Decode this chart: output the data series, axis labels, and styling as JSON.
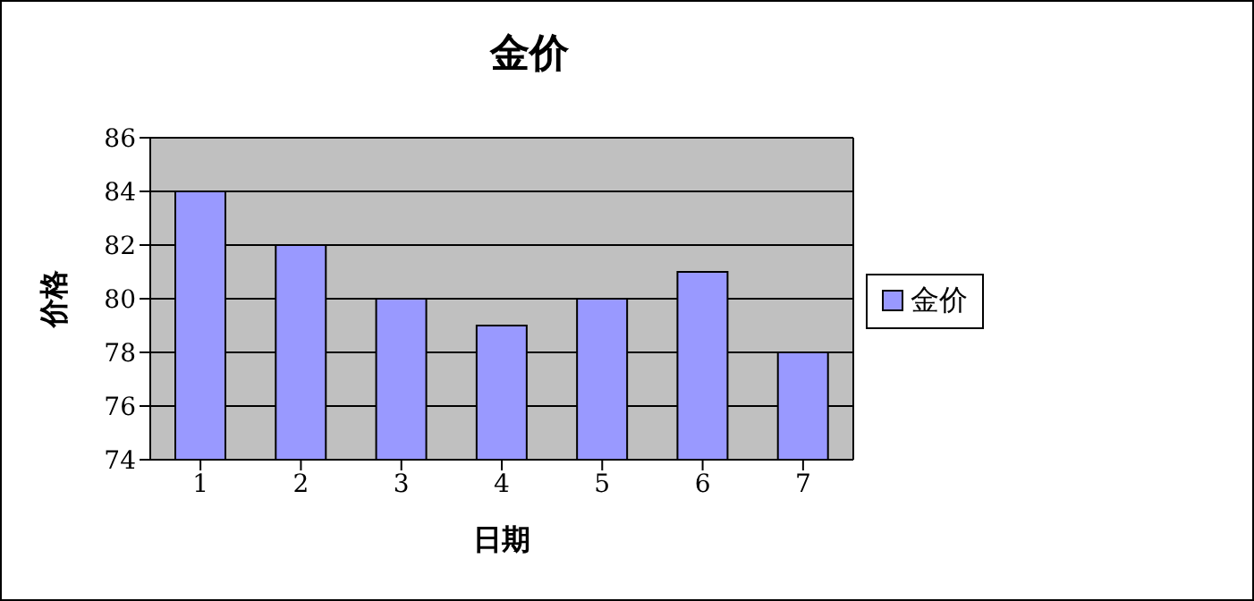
{
  "chart_data": {
    "type": "bar",
    "title": "金价",
    "xlabel": "日期",
    "ylabel": "价格",
    "categories": [
      "1",
      "2",
      "3",
      "4",
      "5",
      "6",
      "7"
    ],
    "series": [
      {
        "name": "金价",
        "color": "#9999ff",
        "values": [
          84,
          82,
          80,
          79,
          80,
          81,
          78
        ]
      }
    ],
    "ylim": [
      74,
      86
    ],
    "yticks": [
      74,
      76,
      78,
      80,
      82,
      84,
      86
    ],
    "grid": "y",
    "legend": "right"
  }
}
